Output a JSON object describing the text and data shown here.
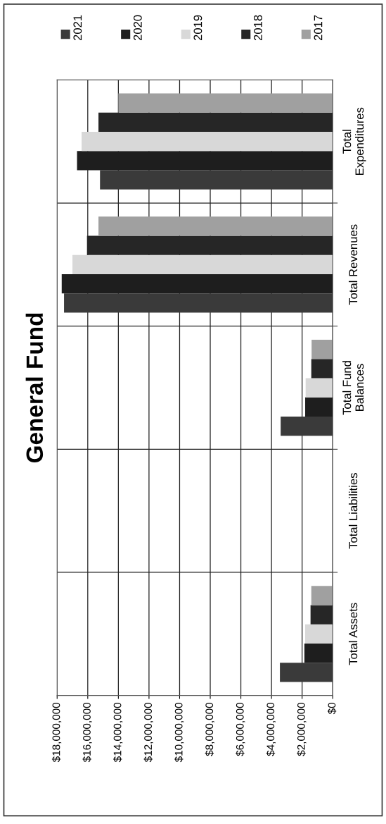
{
  "chart_data": {
    "type": "bar",
    "orientation": "horizontal",
    "title": "General Fund",
    "categories": [
      "Total\nExpenditures",
      "Total Revenues",
      "Total Fund\nBalances",
      "Total Liabilities",
      "Total Assets"
    ],
    "series": [
      {
        "name": "2021",
        "color": "#3a3a3a",
        "values": [
          15200000,
          17550000,
          3400000,
          0,
          3450000
        ]
      },
      {
        "name": "2020",
        "color": "#1e1e1e",
        "values": [
          16700000,
          17700000,
          1800000,
          0,
          1850000
        ]
      },
      {
        "name": "2019",
        "color": "#d8d8d8",
        "values": [
          16400000,
          17000000,
          1770000,
          0,
          1800000
        ]
      },
      {
        "name": "2018",
        "color": "#262626",
        "values": [
          15300000,
          16050000,
          1400000,
          0,
          1450000
        ]
      },
      {
        "name": "2017",
        "color": "#a0a0a0",
        "values": [
          14000000,
          15300000,
          1380000,
          0,
          1400000
        ]
      }
    ],
    "xlim": [
      18000000,
      0
    ],
    "xticks": [
      {
        "value": 18000000,
        "label": "$18,000,000"
      },
      {
        "value": 16000000,
        "label": "$16,000,000"
      },
      {
        "value": 14000000,
        "label": "$14,000,000"
      },
      {
        "value": 12000000,
        "label": "$12,000,000"
      },
      {
        "value": 10000000,
        "label": "$10,000,000"
      },
      {
        "value": 8000000,
        "label": "$8,000,000"
      },
      {
        "value": 6000000,
        "label": "$6,000,000"
      },
      {
        "value": 4000000,
        "label": "$4,000,000"
      },
      {
        "value": 2000000,
        "label": "$2,000,000"
      },
      {
        "value": 0,
        "label": "$0"
      }
    ],
    "grid": true,
    "legend": "top"
  }
}
